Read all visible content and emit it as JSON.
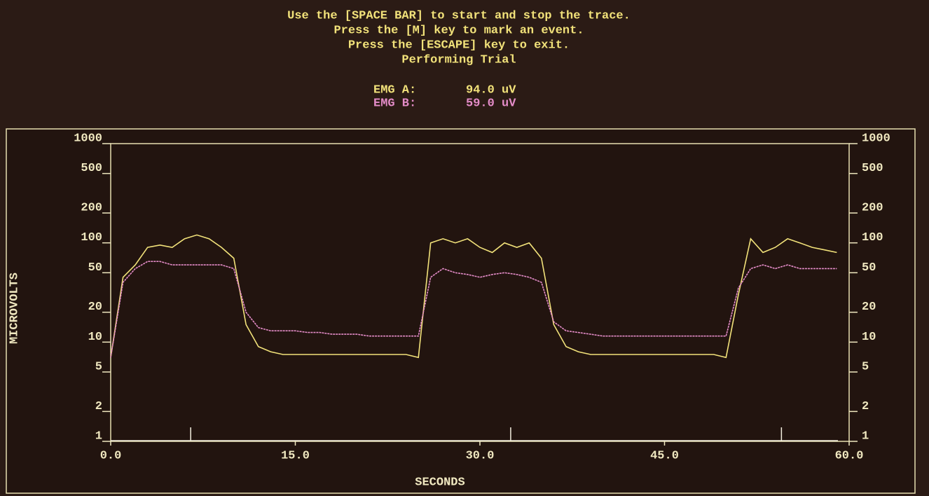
{
  "header": {
    "lines": [
      "Use the [SPACE BAR] to start and stop the trace.",
      "Press the [M] key to mark an event.",
      "Press the [ESCAPE] key to exit.",
      "Performing Trial"
    ],
    "readouts": [
      {
        "label": "EMG A:",
        "value": "94.0 uV"
      },
      {
        "label": "EMG B:",
        "value": "59.0 uV"
      }
    ]
  },
  "chart_data": {
    "type": "line",
    "ylabel": "MICROVOLTS",
    "xlabel": "SECONDS",
    "log_y": true,
    "ylim": [
      1,
      1000
    ],
    "yticks": [
      1,
      2,
      5,
      10,
      20,
      50,
      100,
      200,
      500,
      1000
    ],
    "xlim": [
      0,
      60
    ],
    "xticks": [
      {
        "value": 0,
        "label": "0.0"
      },
      {
        "value": 15,
        "label": "15.0"
      },
      {
        "value": 30,
        "label": "30.0"
      },
      {
        "value": 45,
        "label": "45.0"
      },
      {
        "value": 60,
        "label": "60.0"
      }
    ],
    "x": [
      0,
      1,
      2,
      3,
      4,
      5,
      6,
      7,
      8,
      9,
      10,
      11,
      12,
      13,
      14,
      15,
      16,
      17,
      18,
      19,
      20,
      21,
      22,
      23,
      24,
      25,
      26,
      27,
      28,
      29,
      30,
      31,
      32,
      33,
      34,
      35,
      36,
      37,
      38,
      39,
      40,
      41,
      42,
      43,
      44,
      45,
      46,
      47,
      48,
      49,
      50,
      51,
      52,
      53,
      54,
      55,
      56,
      57,
      58,
      59
    ],
    "series": [
      {
        "name": "EMG A",
        "color": "#f2e27a",
        "values": [
          7,
          45,
          60,
          90,
          95,
          90,
          110,
          120,
          110,
          90,
          70,
          15,
          9,
          8,
          7.5,
          7.5,
          7.5,
          7.5,
          7.5,
          7.5,
          7.5,
          7.5,
          7.5,
          7.5,
          7.5,
          7,
          100,
          110,
          100,
          110,
          90,
          80,
          100,
          90,
          100,
          70,
          15,
          9,
          8,
          7.5,
          7.5,
          7.5,
          7.5,
          7.5,
          7.5,
          7.5,
          7.5,
          7.5,
          7.5,
          7.5,
          7,
          30,
          110,
          80,
          90,
          110,
          100,
          90,
          85,
          80
        ]
      },
      {
        "name": "EMG B",
        "color": "#e48cc8",
        "values": [
          7,
          40,
          55,
          65,
          65,
          60,
          60,
          60,
          60,
          60,
          55,
          20,
          14,
          13,
          13,
          13,
          12.5,
          12.5,
          12,
          12,
          12,
          11.5,
          11.5,
          11.5,
          11.5,
          11.5,
          45,
          55,
          50,
          48,
          45,
          48,
          50,
          48,
          45,
          40,
          16,
          13,
          12.5,
          12,
          11.5,
          11.5,
          11.5,
          11.5,
          11.5,
          11.5,
          11.5,
          11.5,
          11.5,
          11.5,
          11.5,
          35,
          55,
          60,
          55,
          60,
          55,
          55,
          55,
          55
        ]
      }
    ],
    "event_marks": [
      6.5,
      32.5,
      54.5
    ]
  }
}
